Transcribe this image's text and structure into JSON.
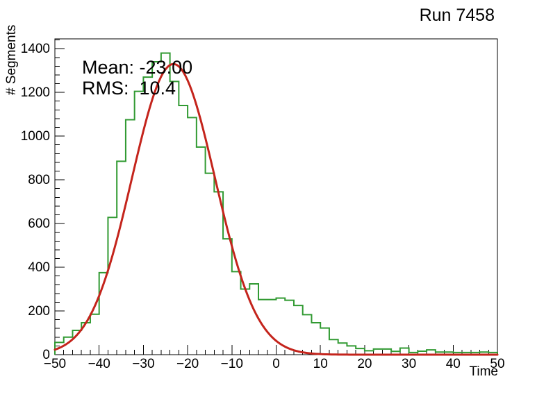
{
  "title": "Run 7458",
  "stats": {
    "mean": "Mean: -23.00",
    "rms": "RMS:  10.4"
  },
  "axes": {
    "x": {
      "title": "Time",
      "min": -50,
      "max": 50,
      "major_tick_values": [
        -50,
        -40,
        -30,
        -20,
        -10,
        0,
        10,
        20,
        30,
        40,
        50
      ],
      "major_tick_labels": [
        "−50",
        "−40",
        "−30",
        "−20",
        "−10",
        "0",
        "10",
        "20",
        "30",
        "40",
        "50"
      ],
      "minor_step": 2
    },
    "y": {
      "title": "# Segments",
      "min": 0,
      "max": 1445,
      "major_tick_values": [
        0,
        200,
        400,
        600,
        800,
        1000,
        1200,
        1400
      ],
      "major_tick_labels": [
        "0",
        "200",
        "400",
        "600",
        "800",
        "1000",
        "1200",
        "1400"
      ],
      "minor_step": 40
    }
  },
  "chart_data": {
    "type": "bar",
    "subtype": "step-histogram-with-gaussian-fit",
    "title": "Run 7458",
    "xlabel": "Time",
    "ylabel": "# Segments",
    "xlim": [
      -50,
      50
    ],
    "ylim": [
      0,
      1445
    ],
    "grid": false,
    "bin_start": -50,
    "bin_width": 2,
    "values": [
      56,
      80,
      111,
      146,
      185,
      375,
      628,
      885,
      1075,
      1205,
      1270,
      1340,
      1380,
      1250,
      1140,
      1085,
      950,
      830,
      745,
      530,
      380,
      300,
      324,
      252,
      252,
      259,
      249,
      225,
      183,
      146,
      122,
      69,
      53,
      40,
      28,
      18,
      26,
      26,
      15,
      30,
      10,
      16,
      22,
      12,
      12,
      10,
      10,
      10,
      12,
      10
    ],
    "fit": {
      "shape": "gaussian",
      "mean": -23.2,
      "sigma": 9.4,
      "amplitude": 1330,
      "reported_mean": -23.0,
      "reported_rms": 10.4
    },
    "colors": {
      "histogram": "#319a32",
      "fit": "#c4241c",
      "axis": "#000000",
      "background": "#ffffff"
    }
  }
}
